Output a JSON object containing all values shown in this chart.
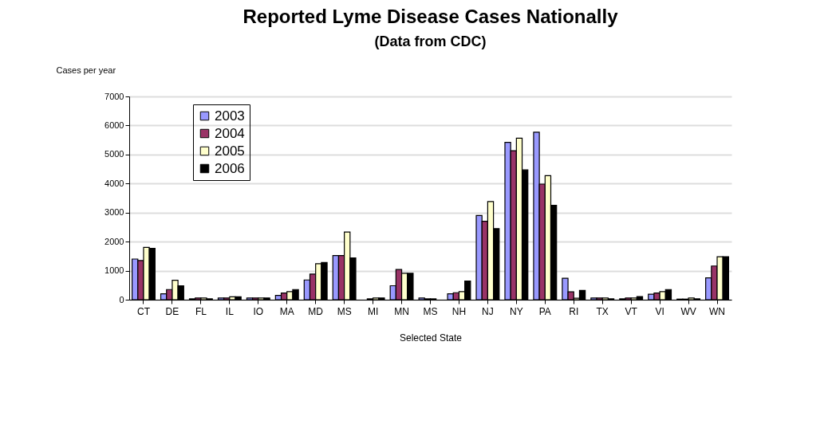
{
  "chart_data": {
    "type": "bar",
    "title": "Reported Lyme Disease Cases Nationally",
    "subtitle": "(Data from CDC)",
    "xlabel": "Selected State",
    "ylabel": "Cases per year",
    "categories": [
      "CT",
      "DE",
      "FL",
      "IL",
      "IO",
      "MA",
      "MD",
      "MS",
      "MI",
      "MN",
      "MS",
      "NH",
      "NJ",
      "NY",
      "PA",
      "RI",
      "TX",
      "VT",
      "VI",
      "WV",
      "WN"
    ],
    "series": [
      {
        "name": "2003",
        "color": "#9999ff",
        "values": [
          1400,
          200,
          30,
          60,
          60,
          150,
          680,
          1520,
          null,
          480,
          60,
          200,
          2900,
          5420,
          5770,
          740,
          60,
          30,
          190,
          20,
          750
        ]
      },
      {
        "name": "2004",
        "color": "#993366",
        "values": [
          1350,
          350,
          60,
          60,
          60,
          230,
          880,
          1520,
          30,
          1040,
          30,
          240,
          2700,
          5130,
          3980,
          270,
          60,
          60,
          230,
          20,
          1160
        ]
      },
      {
        "name": "2005",
        "color": "#ffffcc",
        "values": [
          1800,
          670,
          60,
          100,
          60,
          280,
          1240,
          2330,
          60,
          910,
          30,
          280,
          3380,
          5560,
          4270,
          50,
          60,
          60,
          280,
          60,
          1480
        ]
      },
      {
        "name": "2006",
        "color": "#000000",
        "values": [
          1770,
          480,
          30,
          100,
          60,
          350,
          1280,
          1440,
          60,
          910,
          null,
          640,
          2450,
          4470,
          3250,
          320,
          30,
          110,
          350,
          30,
          1480
        ]
      }
    ],
    "ylim": [
      0,
      7000
    ],
    "yticks": [
      0,
      1000,
      2000,
      3000,
      4000,
      5000,
      6000,
      7000
    ],
    "grid": "y",
    "legend": "top left"
  }
}
